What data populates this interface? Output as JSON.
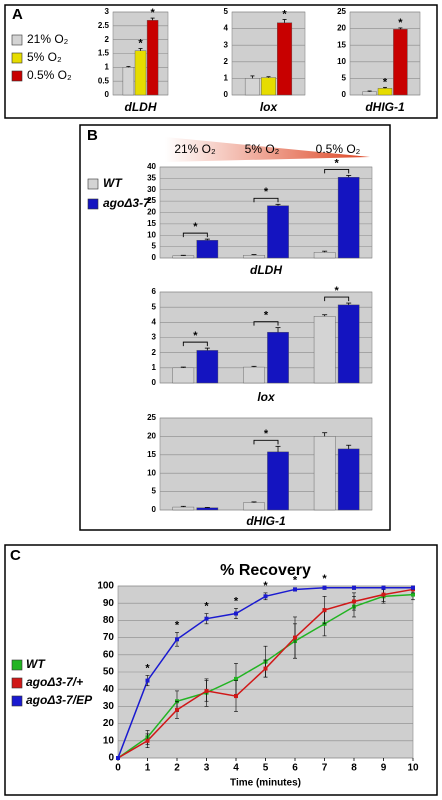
{
  "panels": [
    {
      "label": "A",
      "legend": [
        {
          "name": "21% O₂",
          "color": "#d4d4d4"
        },
        {
          "name": "5% O₂",
          "color": "#e6dc00"
        },
        {
          "name": "0.5% O₂",
          "color": "#c80000"
        }
      ]
    },
    {
      "label": "B",
      "header": [
        "21% O₂",
        "5% O₂",
        "0.5% O₂"
      ],
      "legend": [
        {
          "name": "WT",
          "color": "#d4d4d4"
        },
        {
          "name": "agoΔ3-7",
          "color": "#1414c0"
        }
      ]
    },
    {
      "label": "C"
    }
  ],
  "chart_data": [
    {
      "type": "bar",
      "xlabel": "dLDH",
      "ylim": [
        0,
        3
      ],
      "yticks": [
        0,
        0.5,
        1,
        1.5,
        2,
        2.5,
        3
      ],
      "values": [
        1,
        1.6,
        2.7
      ],
      "errors": [
        0.03,
        0.08,
        0.08
      ],
      "stars": [
        null,
        "*",
        "*"
      ]
    },
    {
      "type": "bar",
      "xlabel": "lox",
      "ylim": [
        0,
        5
      ],
      "yticks": [
        0,
        1,
        2,
        3,
        4,
        5
      ],
      "values": [
        1,
        1.05,
        4.35
      ],
      "errors": [
        0.15,
        0.05,
        0.2
      ],
      "stars": [
        null,
        null,
        "*"
      ]
    },
    {
      "type": "bar",
      "xlabel": "dHIG-1",
      "ylim": [
        0,
        25
      ],
      "yticks": [
        0,
        5,
        10,
        15,
        20,
        25
      ],
      "values": [
        1,
        2,
        19.8
      ],
      "errors": [
        0.2,
        0.3,
        0.4
      ],
      "stars": [
        null,
        "*",
        "*"
      ]
    },
    {
      "type": "groupbar",
      "xlabel": "dLDH",
      "ylim": [
        0,
        40
      ],
      "yticks": [
        0,
        5,
        10,
        15,
        20,
        25,
        30,
        35,
        40
      ],
      "series": [
        {
          "values": [
            1,
            1.2,
            2.5
          ],
          "errors": [
            0.2,
            0.3,
            0.5
          ]
        },
        {
          "values": [
            7.8,
            23,
            35.5
          ],
          "errors": [
            0.5,
            0.6,
            0.8
          ]
        }
      ],
      "stars": [
        "*",
        "*",
        "*"
      ]
    },
    {
      "type": "groupbar",
      "xlabel": "lox",
      "ylim": [
        0,
        6
      ],
      "yticks": [
        0,
        1,
        2,
        3,
        4,
        5,
        6
      ],
      "series": [
        {
          "values": [
            1,
            1.05,
            4.4
          ],
          "errors": [
            0.05,
            0.05,
            0.1
          ]
        },
        {
          "values": [
            2.15,
            3.35,
            5.15
          ],
          "errors": [
            0.15,
            0.3,
            0.12
          ]
        }
      ],
      "stars": [
        "*",
        "*",
        "*"
      ]
    },
    {
      "type": "groupbar",
      "xlabel": "dHIG-1",
      "ylim": [
        0,
        25
      ],
      "yticks": [
        0,
        5,
        10,
        15,
        20,
        25
      ],
      "series": [
        {
          "values": [
            0.8,
            2,
            20
          ],
          "errors": [
            0.2,
            0.2,
            1
          ]
        },
        {
          "values": [
            0.6,
            15.8,
            16.6
          ],
          "errors": [
            0.1,
            1.5,
            1
          ]
        }
      ],
      "stars": [
        null,
        "*",
        null
      ]
    },
    {
      "type": "line",
      "title": "% Recovery",
      "xlabel": "Time (minutes)",
      "x": [
        0,
        1,
        2,
        3,
        4,
        5,
        6,
        7,
        8,
        9,
        10
      ],
      "xlim": [
        0,
        10
      ],
      "xticks": [
        0,
        1,
        2,
        3,
        4,
        5,
        6,
        7,
        8,
        9,
        10
      ],
      "ylim": [
        0,
        100
      ],
      "yticks": [
        0,
        10,
        20,
        30,
        40,
        50,
        60,
        70,
        80,
        90,
        100
      ],
      "series": [
        {
          "name": "WT",
          "color": "#22b422",
          "values": [
            0,
            12,
            33,
            38,
            46,
            56,
            68,
            78,
            88,
            94,
            95
          ],
          "errors": [
            0,
            4,
            6,
            8,
            9,
            9,
            10,
            7,
            6,
            4,
            3
          ]
        },
        {
          "name": "agoΔ3-7/+",
          "color": "#d01818",
          "values": [
            0,
            10,
            28,
            39,
            36,
            52,
            70,
            86,
            91,
            95,
            98
          ],
          "errors": [
            0,
            4,
            5,
            6,
            9,
            5,
            12,
            8,
            5,
            4,
            2
          ]
        },
        {
          "name": "agoΔ3-7/EP",
          "color": "#1a1ad0",
          "values": [
            0,
            45,
            69,
            81,
            84,
            94,
            98,
            99,
            99,
            99,
            99
          ],
          "errors": [
            0,
            3,
            4,
            3,
            3,
            2,
            1,
            1,
            1,
            1,
            1
          ]
        }
      ],
      "stars": [
        null,
        "*",
        "*",
        "*",
        "*",
        "*",
        "*",
        "*",
        null,
        null,
        null
      ]
    }
  ]
}
